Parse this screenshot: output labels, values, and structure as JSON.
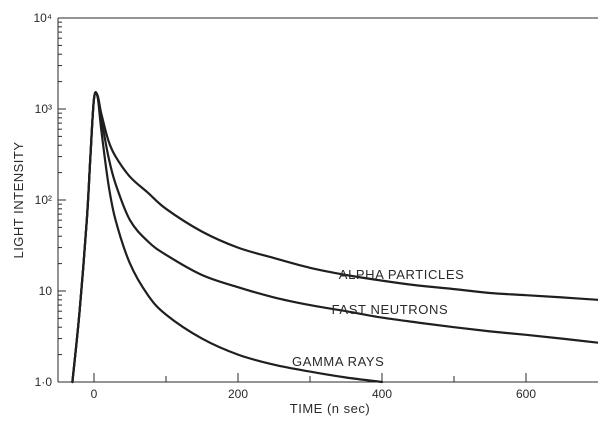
{
  "chart_data": {
    "type": "line",
    "title": "",
    "xlabel": "TIME  (n sec)",
    "ylabel": "LIGHT  INTENSITY",
    "xlim": [
      -50,
      700
    ],
    "ylim": [
      1,
      10000
    ],
    "yscale": "log",
    "grid": false,
    "x_ticks": [
      0,
      200,
      400,
      600
    ],
    "x_tick_labels": [
      "0",
      "200",
      "400",
      "600"
    ],
    "y_ticks": [
      1,
      10,
      100,
      1000,
      10000
    ],
    "y_tick_labels": [
      "1·0",
      "10",
      "10²",
      "10³",
      "10⁴"
    ],
    "series": [
      {
        "name": "ALPHA PARTICLES",
        "x": [
          -30,
          -20,
          -10,
          -5,
          0,
          5,
          10,
          20,
          30,
          50,
          75,
          100,
          150,
          200,
          250,
          300,
          350,
          400,
          450,
          500,
          550,
          600,
          650,
          700
        ],
        "y": [
          1,
          6,
          60,
          300,
          1300,
          1400,
          900,
          450,
          300,
          180,
          120,
          80,
          45,
          30,
          23,
          18,
          15,
          13,
          11.5,
          10.5,
          9.5,
          9,
          8.5,
          8
        ]
      },
      {
        "name": "FAST NEUTRONS",
        "x": [
          -30,
          -20,
          -10,
          -5,
          0,
          5,
          10,
          20,
          30,
          50,
          75,
          100,
          150,
          200,
          250,
          300,
          350,
          400,
          450,
          500,
          550,
          600,
          650,
          700
        ],
        "y": [
          1,
          6,
          60,
          300,
          1300,
          1400,
          800,
          300,
          150,
          60,
          35,
          25,
          15,
          11,
          8.5,
          7,
          6,
          5.1,
          4.5,
          4,
          3.6,
          3.3,
          3,
          2.7
        ]
      },
      {
        "name": "GAMMA RAYS",
        "x": [
          -30,
          -20,
          -10,
          -5,
          0,
          5,
          10,
          20,
          30,
          50,
          75,
          100,
          150,
          200,
          250,
          300,
          350,
          400
        ],
        "y": [
          1,
          6,
          60,
          300,
          1300,
          1350,
          600,
          150,
          60,
          20,
          9,
          5.5,
          3,
          2,
          1.55,
          1.3,
          1.12,
          1
        ]
      }
    ]
  }
}
